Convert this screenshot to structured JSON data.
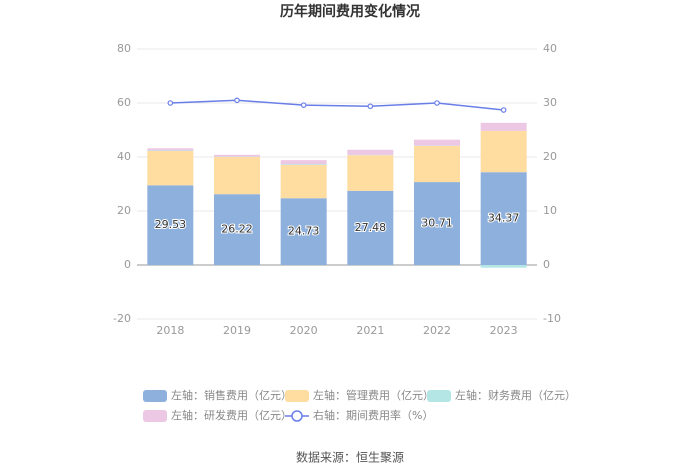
{
  "chart_data": {
    "type": "bar",
    "stacked": true,
    "title": "历年期间费用变化情况",
    "categories": [
      "2018",
      "2019",
      "2020",
      "2021",
      "2022",
      "2023"
    ],
    "series": [
      {
        "name": "左轴：销售费用（亿元）",
        "color": "#8eb0dd",
        "values": [
          29.53,
          26.22,
          24.73,
          27.48,
          30.71,
          34.37
        ],
        "show_labels": true
      },
      {
        "name": "左轴：管理费用（亿元）",
        "color": "#ffdca0",
        "values": [
          12.7,
          13.8,
          12.3,
          13.2,
          13.4,
          15.3
        ]
      },
      {
        "name": "左轴：财务费用（亿元）",
        "color": "#b4e6e6",
        "values": [
          0.2,
          0.1,
          0.3,
          0.1,
          0.1,
          -1.0
        ]
      },
      {
        "name": "左轴：研发费用（亿元）",
        "color": "#ecc8e4",
        "values": [
          0.8,
          0.7,
          1.5,
          1.9,
          2.2,
          3.0
        ]
      },
      {
        "name": "右轴：期间费用率（%）",
        "color": "#6a7ee8",
        "type": "line",
        "axis": "y2",
        "values": [
          30.0,
          30.5,
          29.6,
          29.4,
          30.0,
          28.7
        ]
      }
    ],
    "ylim": [
      -20,
      80
    ],
    "yticks": [
      -20,
      0,
      20,
      40,
      60,
      80
    ],
    "y2lim": [
      -10,
      40
    ],
    "y2ticks": [
      -10,
      0,
      10,
      20,
      30,
      40
    ],
    "grid": true,
    "legend": "bottom",
    "source": "数据来源：恒生聚源"
  }
}
